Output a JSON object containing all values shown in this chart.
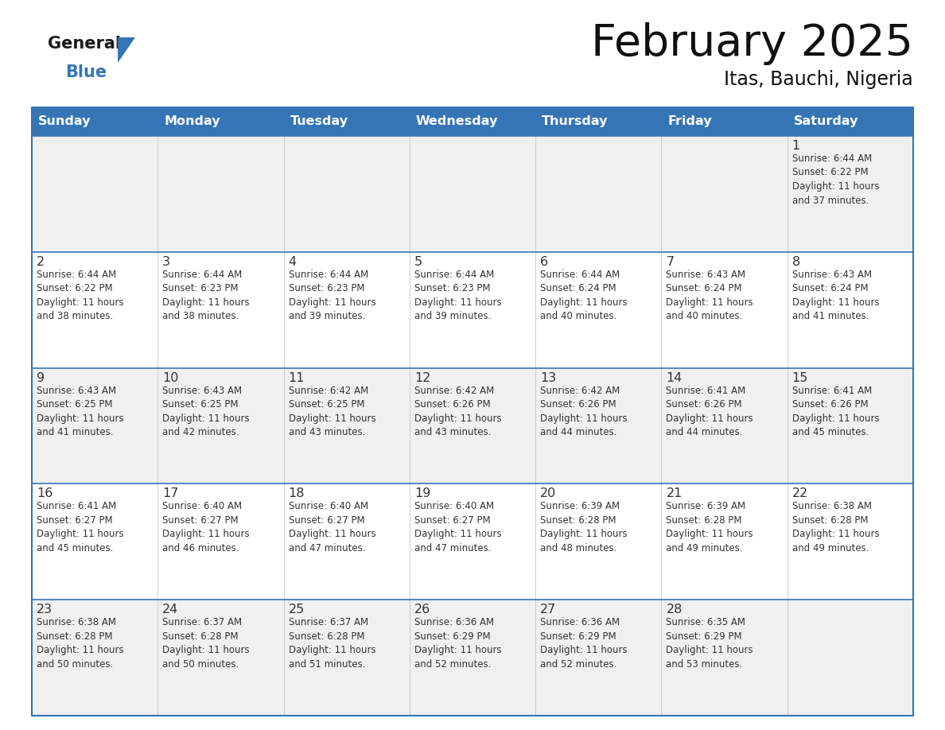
{
  "title": "February 2025",
  "subtitle": "Itas, Bauchi, Nigeria",
  "header_bg": "#3575B5",
  "header_text_color": "#FFFFFF",
  "cell_bg_white": "#FFFFFF",
  "cell_bg_light": "#F0F0F0",
  "text_color": "#333333",
  "border_color": "#3575B5",
  "days_of_week": [
    "Sunday",
    "Monday",
    "Tuesday",
    "Wednesday",
    "Thursday",
    "Friday",
    "Saturday"
  ],
  "calendar": [
    [
      {
        "day": null,
        "info": null
      },
      {
        "day": null,
        "info": null
      },
      {
        "day": null,
        "info": null
      },
      {
        "day": null,
        "info": null
      },
      {
        "day": null,
        "info": null
      },
      {
        "day": null,
        "info": null
      },
      {
        "day": 1,
        "info": "Sunrise: 6:44 AM\nSunset: 6:22 PM\nDaylight: 11 hours\nand 37 minutes."
      }
    ],
    [
      {
        "day": 2,
        "info": "Sunrise: 6:44 AM\nSunset: 6:22 PM\nDaylight: 11 hours\nand 38 minutes."
      },
      {
        "day": 3,
        "info": "Sunrise: 6:44 AM\nSunset: 6:23 PM\nDaylight: 11 hours\nand 38 minutes."
      },
      {
        "day": 4,
        "info": "Sunrise: 6:44 AM\nSunset: 6:23 PM\nDaylight: 11 hours\nand 39 minutes."
      },
      {
        "day": 5,
        "info": "Sunrise: 6:44 AM\nSunset: 6:23 PM\nDaylight: 11 hours\nand 39 minutes."
      },
      {
        "day": 6,
        "info": "Sunrise: 6:44 AM\nSunset: 6:24 PM\nDaylight: 11 hours\nand 40 minutes."
      },
      {
        "day": 7,
        "info": "Sunrise: 6:43 AM\nSunset: 6:24 PM\nDaylight: 11 hours\nand 40 minutes."
      },
      {
        "day": 8,
        "info": "Sunrise: 6:43 AM\nSunset: 6:24 PM\nDaylight: 11 hours\nand 41 minutes."
      }
    ],
    [
      {
        "day": 9,
        "info": "Sunrise: 6:43 AM\nSunset: 6:25 PM\nDaylight: 11 hours\nand 41 minutes."
      },
      {
        "day": 10,
        "info": "Sunrise: 6:43 AM\nSunset: 6:25 PM\nDaylight: 11 hours\nand 42 minutes."
      },
      {
        "day": 11,
        "info": "Sunrise: 6:42 AM\nSunset: 6:25 PM\nDaylight: 11 hours\nand 43 minutes."
      },
      {
        "day": 12,
        "info": "Sunrise: 6:42 AM\nSunset: 6:26 PM\nDaylight: 11 hours\nand 43 minutes."
      },
      {
        "day": 13,
        "info": "Sunrise: 6:42 AM\nSunset: 6:26 PM\nDaylight: 11 hours\nand 44 minutes."
      },
      {
        "day": 14,
        "info": "Sunrise: 6:41 AM\nSunset: 6:26 PM\nDaylight: 11 hours\nand 44 minutes."
      },
      {
        "day": 15,
        "info": "Sunrise: 6:41 AM\nSunset: 6:26 PM\nDaylight: 11 hours\nand 45 minutes."
      }
    ],
    [
      {
        "day": 16,
        "info": "Sunrise: 6:41 AM\nSunset: 6:27 PM\nDaylight: 11 hours\nand 45 minutes."
      },
      {
        "day": 17,
        "info": "Sunrise: 6:40 AM\nSunset: 6:27 PM\nDaylight: 11 hours\nand 46 minutes."
      },
      {
        "day": 18,
        "info": "Sunrise: 6:40 AM\nSunset: 6:27 PM\nDaylight: 11 hours\nand 47 minutes."
      },
      {
        "day": 19,
        "info": "Sunrise: 6:40 AM\nSunset: 6:27 PM\nDaylight: 11 hours\nand 47 minutes."
      },
      {
        "day": 20,
        "info": "Sunrise: 6:39 AM\nSunset: 6:28 PM\nDaylight: 11 hours\nand 48 minutes."
      },
      {
        "day": 21,
        "info": "Sunrise: 6:39 AM\nSunset: 6:28 PM\nDaylight: 11 hours\nand 49 minutes."
      },
      {
        "day": 22,
        "info": "Sunrise: 6:38 AM\nSunset: 6:28 PM\nDaylight: 11 hours\nand 49 minutes."
      }
    ],
    [
      {
        "day": 23,
        "info": "Sunrise: 6:38 AM\nSunset: 6:28 PM\nDaylight: 11 hours\nand 50 minutes."
      },
      {
        "day": 24,
        "info": "Sunrise: 6:37 AM\nSunset: 6:28 PM\nDaylight: 11 hours\nand 50 minutes."
      },
      {
        "day": 25,
        "info": "Sunrise: 6:37 AM\nSunset: 6:28 PM\nDaylight: 11 hours\nand 51 minutes."
      },
      {
        "day": 26,
        "info": "Sunrise: 6:36 AM\nSunset: 6:29 PM\nDaylight: 11 hours\nand 52 minutes."
      },
      {
        "day": 27,
        "info": "Sunrise: 6:36 AM\nSunset: 6:29 PM\nDaylight: 11 hours\nand 52 minutes."
      },
      {
        "day": 28,
        "info": "Sunrise: 6:35 AM\nSunset: 6:29 PM\nDaylight: 11 hours\nand 53 minutes."
      },
      {
        "day": null,
        "info": null
      }
    ]
  ],
  "logo_general_color": "#1a1a1a",
  "logo_blue_color": "#3575B5",
  "logo_triangle_color": "#3575B5"
}
